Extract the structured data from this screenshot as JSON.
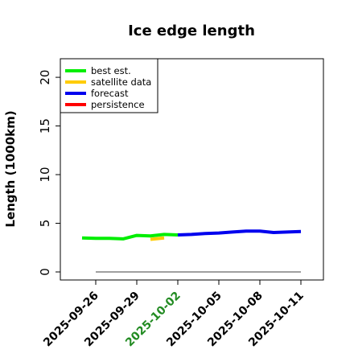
{
  "chart_data": {
    "type": "line",
    "title": "Ice edge length",
    "xlabel": "",
    "ylabel": "Length (1000km)",
    "ylim": [
      0,
      21
    ],
    "yticks": [
      0,
      5,
      10,
      15,
      20
    ],
    "xlim": [
      "2025-09-25",
      "2025-10-12"
    ],
    "xticks": [
      "2025-09-26",
      "2025-09-29",
      "2025-10-02",
      "2025-10-05",
      "2025-10-08",
      "2025-10-11"
    ],
    "highlight_tick": "2025-10-02",
    "highlight_color": "#228b22",
    "grid": false,
    "legend_position": "top-left",
    "legend": [
      "best est.",
      "satellite data",
      "forecast",
      "persistence"
    ],
    "series": [
      {
        "name": "best est.",
        "color": "#00ee00",
        "points": [
          {
            "x": "2025-09-25",
            "y": 3.5
          },
          {
            "x": "2025-09-26",
            "y": 3.45
          },
          {
            "x": "2025-09-27",
            "y": 3.45
          },
          {
            "x": "2025-09-28",
            "y": 3.4
          },
          {
            "x": "2025-09-29",
            "y": 3.75
          },
          {
            "x": "2025-09-30",
            "y": 3.7
          },
          {
            "x": "2025-10-01",
            "y": 3.85
          },
          {
            "x": "2025-10-02",
            "y": 3.8
          }
        ]
      },
      {
        "name": "satellite data",
        "color": "#ffcc00",
        "points": [
          {
            "x": "2025-09-30",
            "y": 3.35
          },
          {
            "x": "2025-10-01",
            "y": 3.5
          }
        ]
      },
      {
        "name": "forecast",
        "color": "#0000ee",
        "points": [
          {
            "x": "2025-10-02",
            "y": 3.8
          },
          {
            "x": "2025-10-03",
            "y": 3.85
          },
          {
            "x": "2025-10-04",
            "y": 3.95
          },
          {
            "x": "2025-10-05",
            "y": 4.0
          },
          {
            "x": "2025-10-06",
            "y": 4.1
          },
          {
            "x": "2025-10-07",
            "y": 4.2
          },
          {
            "x": "2025-10-08",
            "y": 4.2
          },
          {
            "x": "2025-10-09",
            "y": 4.05
          },
          {
            "x": "2025-10-10",
            "y": 4.1
          },
          {
            "x": "2025-10-11",
            "y": 4.15
          }
        ]
      },
      {
        "name": "persistence",
        "color": "#ff0000",
        "points": []
      }
    ],
    "baseline": {
      "y": 0,
      "color": "#808080",
      "from": "2025-09-26",
      "to": "2025-10-11"
    }
  }
}
